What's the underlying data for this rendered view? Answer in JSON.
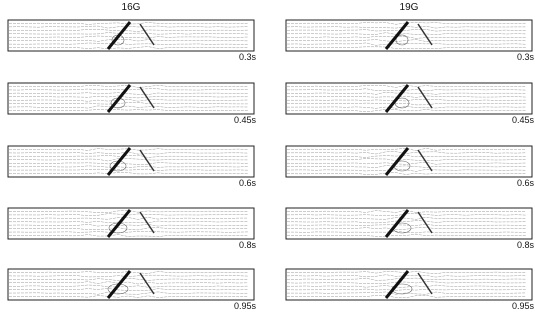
{
  "columns": [
    {
      "title": "16G",
      "panels": [
        {
          "time": "0.3s"
        },
        {
          "time": "0.45s"
        },
        {
          "time": "0.6s"
        },
        {
          "time": "0.8s"
        },
        {
          "time": "0.95s"
        }
      ]
    },
    {
      "title": "19G",
      "panels": [
        {
          "time": "0.3s"
        },
        {
          "time": "0.45s"
        },
        {
          "time": "0.6s"
        },
        {
          "time": "0.8s"
        },
        {
          "time": "0.95s"
        }
      ]
    }
  ]
}
